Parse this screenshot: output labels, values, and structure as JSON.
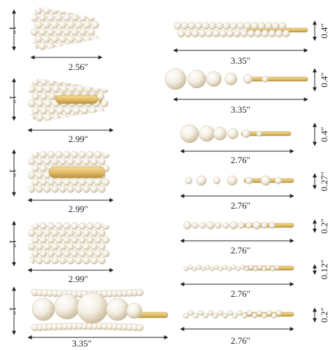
{
  "palette": {
    "pearl": "#f4efe4",
    "pearl_shadow": "#cfc5b0",
    "gold": "#e6c677",
    "gold_dark": "#b8923e",
    "arrow": "#222222",
    "background": "#ffffff"
  },
  "left_clips": [
    {
      "id": "clip-1",
      "width_label": "2.56″",
      "height_label": "1″",
      "style": "pearl-snap-clip"
    },
    {
      "id": "clip-2",
      "width_label": "2.99″",
      "height_label": "1″",
      "style": "pearl-outline-clip"
    },
    {
      "id": "clip-3",
      "width_label": "2.99″",
      "height_label": "1″",
      "style": "pearl-outline-clip"
    },
    {
      "id": "clip-4",
      "width_label": "2.99″",
      "height_label": "1″",
      "style": "pearl-snap-clip"
    },
    {
      "id": "clip-5",
      "width_label": "3.35″",
      "height_label": "1″",
      "style": "large-pearl-clip"
    }
  ],
  "right_pins": [
    {
      "id": "pin-1",
      "width_label": "3.35″",
      "height_label": "0.4″",
      "style": "pearl-cluster-pin"
    },
    {
      "id": "pin-2",
      "width_label": "3.35″",
      "height_label": "0.4″",
      "style": "graduated-pearl-pin"
    },
    {
      "id": "pin-3",
      "width_label": "2.76″",
      "height_label": "0.4″",
      "style": "graduated-pearl-pin"
    },
    {
      "id": "pin-4",
      "width_label": "2.76″",
      "height_label": "0.27″",
      "style": "spaced-pearl-pin"
    },
    {
      "id": "pin-5",
      "width_label": "2.76″",
      "height_label": "0.2″",
      "style": "pearl-row-pin"
    },
    {
      "id": "pin-6",
      "width_label": "2.76″",
      "height_label": "0.12″",
      "style": "tiny-pearl-pin"
    },
    {
      "id": "pin-7",
      "width_label": "2.76″",
      "height_label": "0.2″",
      "style": "pearl-row-pin"
    }
  ]
}
